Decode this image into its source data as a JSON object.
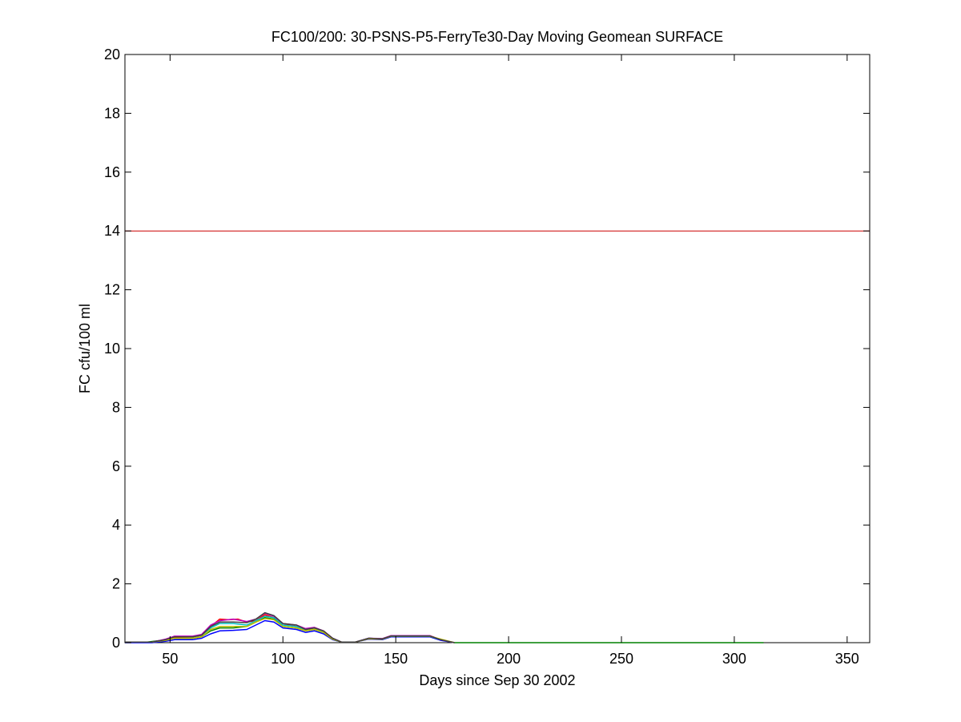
{
  "chart_data": {
    "type": "line",
    "title": "FC100/200: 30-PSNS-P5-FerryTe30-Day Moving Geomean SURFACE",
    "xlabel": "Days since Sep 30 2002",
    "ylabel": "FC cfu/100 ml",
    "xlim": [
      30,
      360
    ],
    "ylim": [
      0,
      20
    ],
    "xticks": [
      50,
      100,
      150,
      200,
      250,
      300,
      350
    ],
    "yticks": [
      0,
      2,
      4,
      6,
      8,
      10,
      12,
      14,
      16,
      18,
      20
    ],
    "grid": false,
    "legend": "none",
    "reference_line": {
      "y": 14,
      "color": "#cc0000"
    },
    "series": [
      {
        "color": "#0000ff",
        "points": [
          [
            30,
            0
          ],
          [
            42,
            0
          ],
          [
            48,
            0.05
          ],
          [
            52,
            0.1
          ],
          [
            60,
            0.1
          ],
          [
            64,
            0.15
          ],
          [
            68,
            0.3
          ],
          [
            72,
            0.4
          ],
          [
            78,
            0.42
          ],
          [
            84,
            0.45
          ],
          [
            88,
            0.6
          ],
          [
            92,
            0.75
          ],
          [
            96,
            0.7
          ],
          [
            100,
            0.5
          ],
          [
            106,
            0.45
          ],
          [
            110,
            0.35
          ],
          [
            114,
            0.4
          ],
          [
            118,
            0.3
          ],
          [
            122,
            0.1
          ],
          [
            126,
            0.02
          ],
          [
            132,
            0.02
          ],
          [
            138,
            0.12
          ],
          [
            144,
            0.1
          ],
          [
            148,
            0.2
          ],
          [
            165,
            0.2
          ],
          [
            170,
            0.08
          ],
          [
            176,
            0
          ]
        ]
      },
      {
        "color": "#008000",
        "points": [
          [
            30,
            0.02
          ],
          [
            40,
            0.02
          ],
          [
            46,
            0.08
          ],
          [
            50,
            0.15
          ],
          [
            60,
            0.15
          ],
          [
            64,
            0.2
          ],
          [
            68,
            0.4
          ],
          [
            72,
            0.5
          ],
          [
            78,
            0.5
          ],
          [
            84,
            0.55
          ],
          [
            88,
            0.7
          ],
          [
            92,
            0.85
          ],
          [
            96,
            0.8
          ],
          [
            100,
            0.55
          ],
          [
            106,
            0.5
          ],
          [
            110,
            0.4
          ],
          [
            114,
            0.45
          ],
          [
            118,
            0.35
          ],
          [
            122,
            0.12
          ],
          [
            126,
            0.02
          ],
          [
            132,
            0.02
          ],
          [
            138,
            0.14
          ],
          [
            144,
            0.12
          ],
          [
            148,
            0.22
          ],
          [
            165,
            0.22
          ],
          [
            170,
            0.1
          ],
          [
            176,
            0
          ],
          [
            190,
            0
          ],
          [
            220,
            0
          ],
          [
            283,
            0
          ],
          [
            313,
            0
          ]
        ]
      },
      {
        "color": "#ff0000",
        "points": [
          [
            30,
            0.02
          ],
          [
            42,
            0.02
          ],
          [
            48,
            0.1
          ],
          [
            52,
            0.18
          ],
          [
            60,
            0.2
          ],
          [
            64,
            0.25
          ],
          [
            68,
            0.55
          ],
          [
            72,
            0.8
          ],
          [
            76,
            0.78
          ],
          [
            80,
            0.8
          ],
          [
            84,
            0.7
          ],
          [
            88,
            0.75
          ],
          [
            92,
            0.95
          ],
          [
            96,
            0.85
          ],
          [
            100,
            0.65
          ],
          [
            106,
            0.55
          ],
          [
            110,
            0.45
          ],
          [
            114,
            0.5
          ],
          [
            118,
            0.4
          ],
          [
            122,
            0.15
          ],
          [
            126,
            0.02
          ],
          [
            132,
            0.02
          ],
          [
            138,
            0.15
          ],
          [
            144,
            0.13
          ],
          [
            148,
            0.24
          ],
          [
            165,
            0.24
          ],
          [
            170,
            0.1
          ],
          [
            176,
            0
          ]
        ]
      },
      {
        "color": "#00bfbf",
        "points": [
          [
            30,
            0.02
          ],
          [
            42,
            0.02
          ],
          [
            48,
            0.1
          ],
          [
            52,
            0.2
          ],
          [
            60,
            0.2
          ],
          [
            64,
            0.25
          ],
          [
            68,
            0.5
          ],
          [
            72,
            0.65
          ],
          [
            78,
            0.65
          ],
          [
            84,
            0.6
          ],
          [
            88,
            0.75
          ],
          [
            92,
            0.9
          ],
          [
            96,
            0.85
          ],
          [
            100,
            0.6
          ],
          [
            106,
            0.55
          ],
          [
            110,
            0.45
          ],
          [
            114,
            0.5
          ],
          [
            118,
            0.38
          ],
          [
            122,
            0.15
          ],
          [
            126,
            0.02
          ],
          [
            132,
            0.02
          ],
          [
            138,
            0.15
          ],
          [
            144,
            0.13
          ],
          [
            148,
            0.22
          ],
          [
            165,
            0.22
          ],
          [
            170,
            0.1
          ],
          [
            176,
            0
          ]
        ]
      },
      {
        "color": "#bf00bf",
        "points": [
          [
            30,
            0.02
          ],
          [
            42,
            0.02
          ],
          [
            48,
            0.12
          ],
          [
            52,
            0.22
          ],
          [
            60,
            0.22
          ],
          [
            64,
            0.28
          ],
          [
            68,
            0.6
          ],
          [
            72,
            0.75
          ],
          [
            78,
            0.8
          ],
          [
            84,
            0.72
          ],
          [
            88,
            0.8
          ],
          [
            92,
            1.0
          ],
          [
            96,
            0.9
          ],
          [
            100,
            0.65
          ],
          [
            106,
            0.6
          ],
          [
            110,
            0.48
          ],
          [
            114,
            0.52
          ],
          [
            118,
            0.4
          ],
          [
            122,
            0.15
          ],
          [
            126,
            0.02
          ],
          [
            132,
            0.02
          ],
          [
            138,
            0.15
          ],
          [
            144,
            0.14
          ],
          [
            148,
            0.24
          ],
          [
            165,
            0.24
          ],
          [
            170,
            0.1
          ],
          [
            176,
            0
          ]
        ]
      },
      {
        "color": "#bfbf00",
        "points": [
          [
            30,
            0.02
          ],
          [
            42,
            0.02
          ],
          [
            48,
            0.08
          ],
          [
            52,
            0.15
          ],
          [
            60,
            0.15
          ],
          [
            64,
            0.2
          ],
          [
            68,
            0.45
          ],
          [
            72,
            0.55
          ],
          [
            78,
            0.55
          ],
          [
            84,
            0.55
          ],
          [
            88,
            0.7
          ],
          [
            92,
            0.82
          ],
          [
            96,
            0.78
          ],
          [
            100,
            0.55
          ],
          [
            106,
            0.5
          ],
          [
            110,
            0.4
          ],
          [
            114,
            0.45
          ],
          [
            118,
            0.35
          ],
          [
            122,
            0.12
          ],
          [
            126,
            0.02
          ],
          [
            132,
            0.02
          ],
          [
            138,
            0.13
          ],
          [
            144,
            0.12
          ],
          [
            148,
            0.22
          ],
          [
            165,
            0.22
          ],
          [
            170,
            0.12
          ],
          [
            176,
            0
          ]
        ]
      },
      {
        "color": "#404040",
        "points": [
          [
            30,
            0.02
          ],
          [
            42,
            0.02
          ],
          [
            48,
            0.1
          ],
          [
            52,
            0.2
          ],
          [
            60,
            0.2
          ],
          [
            64,
            0.25
          ],
          [
            68,
            0.55
          ],
          [
            72,
            0.7
          ],
          [
            78,
            0.7
          ],
          [
            84,
            0.68
          ],
          [
            88,
            0.8
          ],
          [
            92,
            1.02
          ],
          [
            96,
            0.92
          ],
          [
            100,
            0.65
          ],
          [
            106,
            0.6
          ],
          [
            110,
            0.45
          ],
          [
            114,
            0.5
          ],
          [
            118,
            0.4
          ],
          [
            122,
            0.15
          ],
          [
            126,
            0.02
          ],
          [
            132,
            0.02
          ],
          [
            138,
            0.15
          ],
          [
            144,
            0.13
          ],
          [
            148,
            0.23
          ],
          [
            165,
            0.23
          ],
          [
            170,
            0.1
          ],
          [
            176,
            0
          ]
        ]
      }
    ]
  }
}
